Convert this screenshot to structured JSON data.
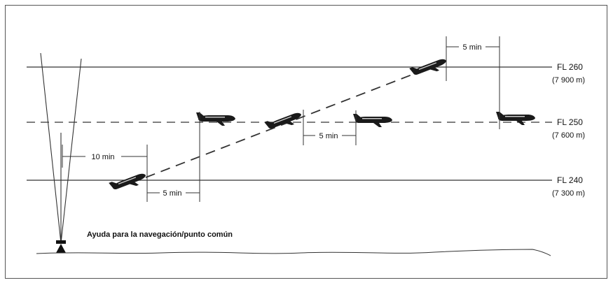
{
  "flight_levels": [
    {
      "id": "fl260",
      "label": "FL 260",
      "alt": "(7 900 m)"
    },
    {
      "id": "fl250",
      "label": "FL 250",
      "alt": "(7 600 m)"
    },
    {
      "id": "fl240",
      "label": "FL 240",
      "alt": "(7 300 m)"
    }
  ],
  "separations": {
    "ten_min": "10 min",
    "five_min_bottom": "5 min",
    "five_min_middle": "5 min",
    "five_min_top": "5 min"
  },
  "nav_aid_label": "Ayuda para la navegación/punto común",
  "colors": {
    "line": "#333333",
    "aircraft": "#1a1a1a",
    "background": "#ffffff"
  }
}
